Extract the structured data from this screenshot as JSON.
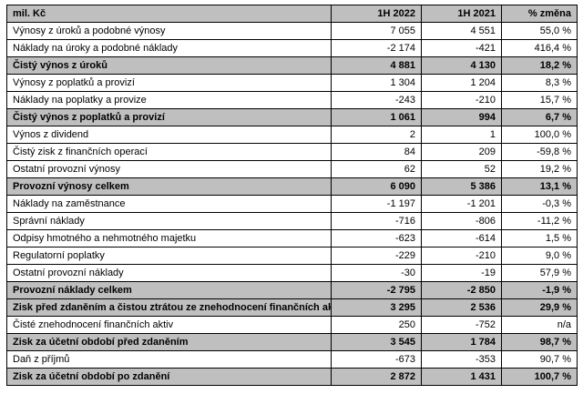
{
  "colors": {
    "emphasis_row_bg": "#bfbfbf",
    "header_bg": "#bfbfbf",
    "plain_row_bg": "#ffffff",
    "border": "#000000",
    "text": "#000000"
  },
  "table": {
    "header": {
      "unit_label": "mil. Kč",
      "col_2022": "1H 2022",
      "col_2021": "1H 2021",
      "col_change": "% změna"
    },
    "rows": [
      {
        "label": "Výnosy z úroků a podobné výnosy",
        "v2022": "7 055",
        "v2021": "4 551",
        "change": "55,0 %",
        "emphasis": false
      },
      {
        "label": "Náklady na úroky a podobné náklady",
        "v2022": "-2 174",
        "v2021": "-421",
        "change": "416,4 %",
        "emphasis": false
      },
      {
        "label": "Čistý výnos z úroků",
        "v2022": "4 881",
        "v2021": "4 130",
        "change": "18,2 %",
        "emphasis": true
      },
      {
        "label": "Výnosy z poplatků a provizí",
        "v2022": "1 304",
        "v2021": "1 204",
        "change": "8,3 %",
        "emphasis": false
      },
      {
        "label": "Náklady na poplatky a provize",
        "v2022": "-243",
        "v2021": "-210",
        "change": "15,7 %",
        "emphasis": false
      },
      {
        "label": "Čistý výnos z poplatků a provizí",
        "v2022": "1 061",
        "v2021": "994",
        "change": "6,7 %",
        "emphasis": true
      },
      {
        "label": "Výnos z dividend",
        "v2022": "2",
        "v2021": "1",
        "change": "100,0 %",
        "emphasis": false
      },
      {
        "label": "Čistý zisk z finančních operací",
        "v2022": "84",
        "v2021": "209",
        "change": "-59,8 %",
        "emphasis": false
      },
      {
        "label": "Ostatní provozní výnosy",
        "v2022": "62",
        "v2021": "52",
        "change": "19,2 %",
        "emphasis": false
      },
      {
        "label": "Provozní výnosy celkem",
        "v2022": "6 090",
        "v2021": "5 386",
        "change": "13,1 %",
        "emphasis": true
      },
      {
        "label": "Náklady na zaměstnance",
        "v2022": "-1 197",
        "v2021": "-1 201",
        "change": "-0,3 %",
        "emphasis": false
      },
      {
        "label": "Správní náklady",
        "v2022": "-716",
        "v2021": "-806",
        "change": "-11,2 %",
        "emphasis": false
      },
      {
        "label": "Odpisy hmotného a nehmotného majetku",
        "v2022": "-623",
        "v2021": "-614",
        "change": "1,5 %",
        "emphasis": false
      },
      {
        "label": "Regulatorní poplatky",
        "v2022": "-229",
        "v2021": "-210",
        "change": "9,0 %",
        "emphasis": false
      },
      {
        "label": "Ostatní provozní náklady",
        "v2022": "-30",
        "v2021": "-19",
        "change": "57,9 %",
        "emphasis": false
      },
      {
        "label": "Provozní náklady celkem",
        "v2022": "-2 795",
        "v2021": "-2 850",
        "change": "-1,9 %",
        "emphasis": true
      },
      {
        "label": "Zisk před zdaněním a čistou ztrátou ze znehodnocení finančních aktiv",
        "v2022": "3 295",
        "v2021": "2 536",
        "change": "29,9 %",
        "emphasis": true
      },
      {
        "label": "Čisté znehodnocení finančních aktiv",
        "v2022": "250",
        "v2021": "-752",
        "change": "n/a",
        "emphasis": false
      },
      {
        "label": "Zisk za účetní období před zdaněním",
        "v2022": "3 545",
        "v2021": "1 784",
        "change": "98,7 %",
        "emphasis": true
      },
      {
        "label": "Daň z příjmů",
        "v2022": "-673",
        "v2021": "-353",
        "change": "90,7 %",
        "emphasis": false
      },
      {
        "label": "Zisk za účetní období po zdanění",
        "v2022": "2 872",
        "v2021": "1 431",
        "change": "100,7 %",
        "emphasis": true
      }
    ]
  }
}
